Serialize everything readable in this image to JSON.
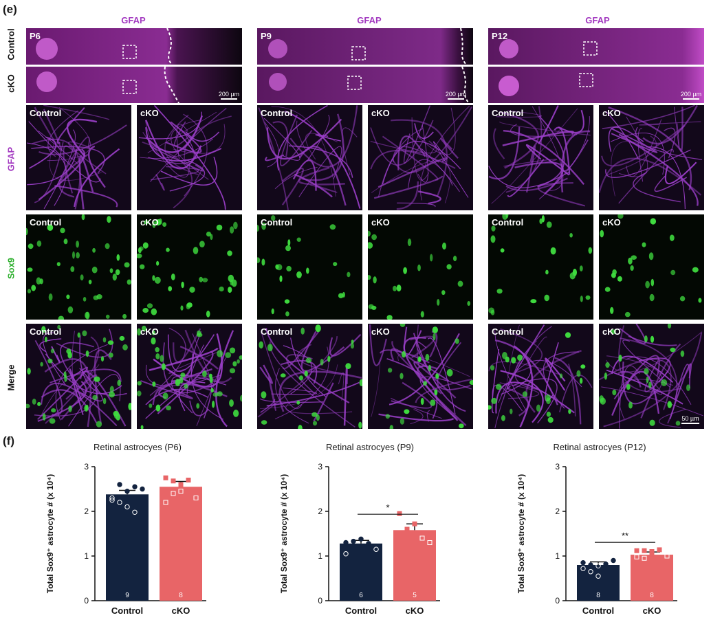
{
  "panel_e": {
    "letter": "(e)",
    "columns": [
      {
        "header": "GFAP",
        "age": "P6",
        "scale": "200 µm"
      },
      {
        "header": "GFAP",
        "age": "P9",
        "scale": "200 µm"
      },
      {
        "header": "GFAP",
        "age": "P12",
        "scale": "200 µm"
      }
    ],
    "row_labels": {
      "control": "Control",
      "cko": "cKO",
      "gfap": "GFAP",
      "sox9": "Sox9",
      "merge": "Merge"
    },
    "tile_labels": {
      "control": "Control",
      "cko": "cKO"
    },
    "small_scale": "50 µm",
    "colors": {
      "gfap": "#a238c0",
      "sox9": "#2aae2a",
      "dark_bg": "#0a0612"
    }
  },
  "chart_data": [
    {
      "type": "bar",
      "panel_letter": "(f)",
      "title": "Retinal astrocyes (P6)",
      "ylabel": "Total Sox9⁺ astrocyte # (x 10⁴)",
      "ylim": [
        0,
        3
      ],
      "yticks": [
        "0",
        "1",
        "2",
        "3"
      ],
      "categories": [
        "Control",
        "cKO"
      ],
      "values": [
        2.38,
        2.55
      ],
      "errors": [
        0.09,
        0.12
      ],
      "n": [
        "9",
        "8"
      ],
      "colors": [
        "#13233f",
        "#e86567"
      ],
      "points": [
        [
          2.25,
          2.6,
          2.45,
          2.55,
          2.5,
          2.3,
          2.2,
          2.1,
          1.98
        ],
        [
          2.75,
          2.68,
          2.6,
          2.7,
          2.3,
          2.2,
          2.4,
          2.45
        ]
      ],
      "significance": ""
    },
    {
      "type": "bar",
      "title": "Retinal astrocyes (P9)",
      "ylabel": "Total Sox9⁺ astrocyte # (x 10⁴)",
      "ylim": [
        0,
        3
      ],
      "yticks": [
        "0",
        "1",
        "2",
        "3"
      ],
      "categories": [
        "Control",
        "cKO"
      ],
      "values": [
        1.28,
        1.58
      ],
      "errors": [
        0.07,
        0.14
      ],
      "n": [
        "6",
        "5"
      ],
      "colors": [
        "#13233f",
        "#e86567"
      ],
      "points": [
        [
          1.3,
          1.33,
          1.38,
          1.28,
          1.15,
          1.05
        ],
        [
          1.95,
          1.6,
          1.72,
          1.4,
          1.3
        ]
      ],
      "significance": "*"
    },
    {
      "type": "bar",
      "title": "Retinal astrocyes (P12)",
      "ylabel": "Total Sox9⁺ astrocyte # (x 10⁴)",
      "ylim": [
        0,
        3
      ],
      "yticks": [
        "0",
        "1",
        "2",
        "3"
      ],
      "categories": [
        "Control",
        "cKO"
      ],
      "values": [
        0.8,
        1.03
      ],
      "errors": [
        0.07,
        0.06
      ],
      "n": [
        "8",
        "8"
      ],
      "colors": [
        "#13233f",
        "#e86567"
      ],
      "points": [
        [
          0.85,
          0.8,
          0.78,
          0.82,
          0.9,
          0.72,
          0.65,
          0.55
        ],
        [
          1.12,
          1.12,
          1.1,
          1.14,
          1.0,
          0.98,
          0.95,
          1.05
        ]
      ],
      "significance": "**"
    }
  ]
}
